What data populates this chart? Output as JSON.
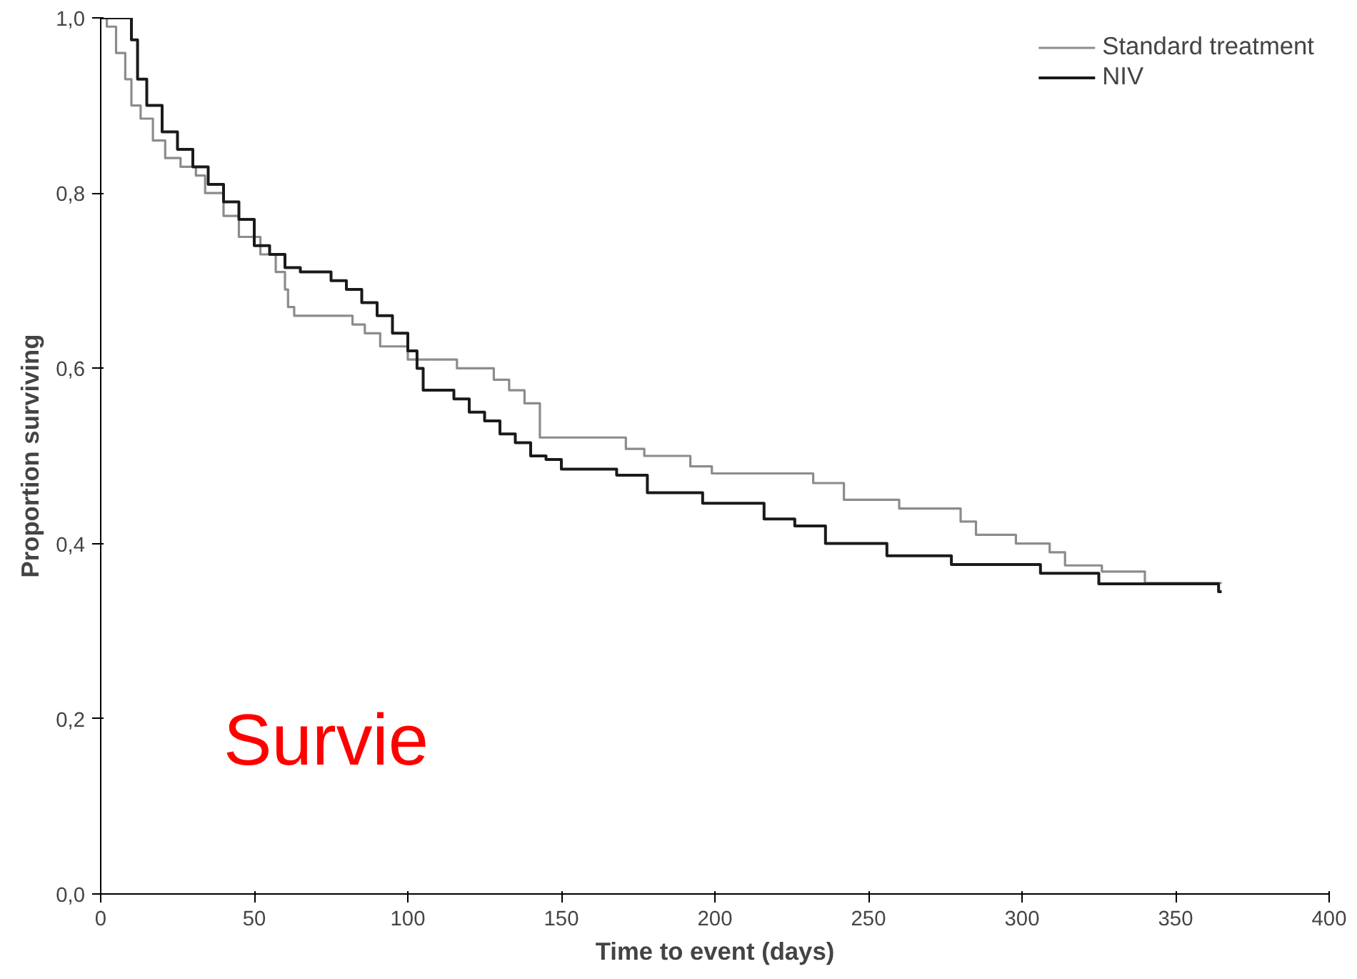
{
  "chart_data": {
    "type": "step",
    "xlabel": "Time to event (days)",
    "ylabel": "Proportion surviving",
    "xlim": [
      0,
      400
    ],
    "ylim": [
      0,
      1
    ],
    "xticks": [
      0,
      50,
      100,
      150,
      200,
      250,
      300,
      350,
      400
    ],
    "yticks": [
      {
        "value": 0,
        "label": "0,0"
      },
      {
        "value": 0.2,
        "label": "0,2"
      },
      {
        "value": 0.4,
        "label": "0,4"
      },
      {
        "value": 0.6,
        "label": "0,6"
      },
      {
        "value": 0.8,
        "label": "0,8"
      },
      {
        "value": 1,
        "label": "1,0"
      }
    ],
    "grid": false,
    "legend": "top right",
    "annotations": [
      "Survie"
    ],
    "series": [
      {
        "name": "Standard treatment",
        "color": "#8c8c8c",
        "x": [
          0,
          2,
          5,
          8,
          10,
          13,
          17,
          21,
          26,
          31,
          34,
          40,
          45,
          52,
          57,
          60,
          61,
          63,
          82,
          86,
          91,
          100,
          116,
          128,
          133,
          138,
          143,
          171,
          177,
          192,
          199,
          232,
          242,
          260,
          280,
          285,
          298,
          309,
          314,
          326,
          340,
          365
        ],
        "values": [
          1.0,
          0.99,
          0.96,
          0.93,
          0.9,
          0.885,
          0.86,
          0.84,
          0.83,
          0.82,
          0.8,
          0.774,
          0.75,
          0.73,
          0.71,
          0.69,
          0.67,
          0.66,
          0.65,
          0.64,
          0.625,
          0.61,
          0.6,
          0.587,
          0.575,
          0.56,
          0.521,
          0.508,
          0.5,
          0.488,
          0.48,
          0.469,
          0.45,
          0.44,
          0.425,
          0.41,
          0.4,
          0.39,
          0.375,
          0.368,
          0.355,
          0.355
        ]
      },
      {
        "name": "NIV",
        "color": "#1a1a1a",
        "x": [
          0,
          10,
          12,
          15,
          20,
          25,
          30,
          35,
          40,
          45,
          50,
          55,
          60,
          65,
          75,
          80,
          85,
          90,
          95,
          100,
          103,
          105,
          115,
          120,
          125,
          130,
          135,
          140,
          145,
          150,
          168,
          178,
          196,
          216,
          226,
          236,
          256,
          277,
          306,
          325,
          364,
          365
        ],
        "values": [
          1.0,
          0.975,
          0.93,
          0.9,
          0.87,
          0.85,
          0.83,
          0.81,
          0.79,
          0.77,
          0.74,
          0.73,
          0.715,
          0.71,
          0.7,
          0.69,
          0.675,
          0.66,
          0.64,
          0.62,
          0.6,
          0.575,
          0.565,
          0.55,
          0.54,
          0.525,
          0.515,
          0.5,
          0.496,
          0.485,
          0.478,
          0.458,
          0.446,
          0.428,
          0.42,
          0.4,
          0.386,
          0.376,
          0.366,
          0.354,
          0.345,
          0.345
        ]
      }
    ]
  }
}
